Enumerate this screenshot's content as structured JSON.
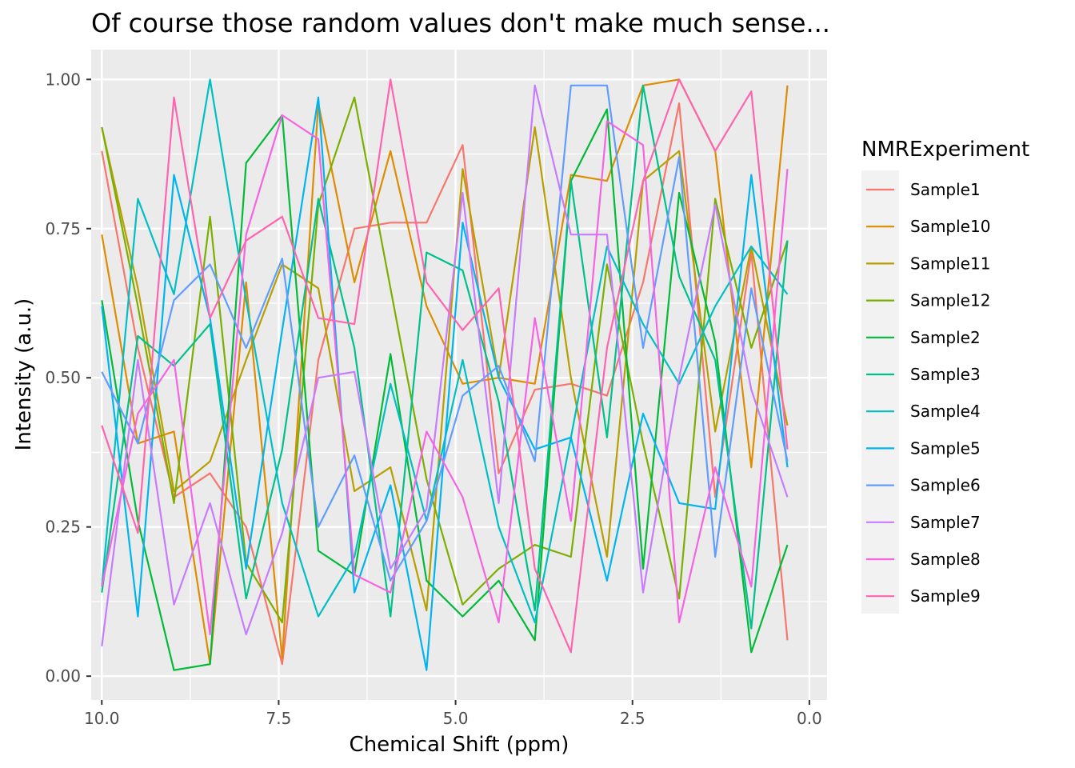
{
  "chart_data": {
    "type": "line",
    "title": "Of course those random values don't make much sense...",
    "xlabel": "Chemical Shift (ppm)",
    "ylabel": "Intensity (a.u.)",
    "x_reversed": true,
    "xlim": [
      10.15,
      -0.25
    ],
    "ylim": [
      -0.04,
      1.05
    ],
    "x_ticks": [
      10.0,
      7.5,
      5.0,
      2.5,
      0.0
    ],
    "x_tick_labels": [
      "10.0",
      "7.5",
      "5.0",
      "2.5",
      "0.0"
    ],
    "y_ticks": [
      0.0,
      0.25,
      0.5,
      0.75,
      1.0
    ],
    "y_tick_labels": [
      "0.00",
      "0.25",
      "0.50",
      "0.75",
      "1.00"
    ],
    "x": [
      10.0,
      9.49,
      8.98,
      8.47,
      7.96,
      7.45,
      6.94,
      6.43,
      5.92,
      5.41,
      4.9,
      4.39,
      3.88,
      3.37,
      2.86,
      2.35,
      1.84,
      1.33,
      0.82,
      0.31
    ],
    "grid": true,
    "legend": {
      "title": "NMRExperiment",
      "position": "right"
    },
    "series": [
      {
        "name": "Sample1",
        "color": "#F8766D",
        "values": [
          0.88,
          0.55,
          0.3,
          0.34,
          0.25,
          0.02,
          0.53,
          0.75,
          0.76,
          0.76,
          0.89,
          0.34,
          0.48,
          0.49,
          0.47,
          0.66,
          0.96,
          0.3,
          0.71,
          0.06
        ]
      },
      {
        "name": "Sample10",
        "color": "#DE8C00",
        "values": [
          0.74,
          0.39,
          0.41,
          0.02,
          0.66,
          0.03,
          0.96,
          0.66,
          0.88,
          0.62,
          0.49,
          0.5,
          0.49,
          0.84,
          0.83,
          0.99,
          1.0,
          0.88,
          0.35,
          0.99
        ]
      },
      {
        "name": "Sample11",
        "color": "#B79F00",
        "values": [
          0.92,
          0.65,
          0.31,
          0.36,
          0.53,
          0.69,
          0.65,
          0.31,
          0.35,
          0.11,
          0.85,
          0.5,
          0.92,
          0.5,
          0.2,
          0.83,
          0.88,
          0.41,
          0.72,
          0.42
        ]
      },
      {
        "name": "Sample12",
        "color": "#7CAE00",
        "values": [
          0.92,
          0.62,
          0.29,
          0.77,
          0.19,
          0.09,
          0.79,
          0.97,
          0.65,
          0.33,
          0.12,
          0.18,
          0.22,
          0.2,
          0.69,
          0.39,
          0.13,
          0.8,
          0.55,
          0.73
        ]
      },
      {
        "name": "Sample2",
        "color": "#00BA38",
        "values": [
          0.63,
          0.26,
          0.01,
          0.02,
          0.86,
          0.94,
          0.21,
          0.17,
          0.54,
          0.16,
          0.1,
          0.16,
          0.06,
          0.83,
          0.95,
          0.18,
          0.81,
          0.56,
          0.04,
          0.22
        ]
      },
      {
        "name": "Sample3",
        "color": "#00C08B",
        "values": [
          0.14,
          0.57,
          0.52,
          0.59,
          0.13,
          0.38,
          0.8,
          0.55,
          0.1,
          0.71,
          0.68,
          0.46,
          0.11,
          0.83,
          0.4,
          0.99,
          0.67,
          0.53,
          0.08,
          0.73
        ]
      },
      {
        "name": "Sample4",
        "color": "#00BFC4",
        "values": [
          0.15,
          0.8,
          0.64,
          1.0,
          0.63,
          0.29,
          0.1,
          0.2,
          0.49,
          0.26,
          0.53,
          0.25,
          0.09,
          0.4,
          0.72,
          0.59,
          0.49,
          0.62,
          0.72,
          0.64
        ]
      },
      {
        "name": "Sample5",
        "color": "#00B4F0",
        "values": [
          0.62,
          0.1,
          0.84,
          0.6,
          0.18,
          0.58,
          0.97,
          0.14,
          0.32,
          0.01,
          0.76,
          0.5,
          0.38,
          0.4,
          0.16,
          0.44,
          0.29,
          0.28,
          0.84,
          0.35
        ]
      },
      {
        "name": "Sample6",
        "color": "#619CFF",
        "values": [
          0.51,
          0.39,
          0.63,
          0.69,
          0.55,
          0.7,
          0.25,
          0.37,
          0.16,
          0.26,
          0.47,
          0.52,
          0.36,
          0.99,
          0.99,
          0.55,
          0.87,
          0.2,
          0.65,
          0.36
        ]
      },
      {
        "name": "Sample7",
        "color": "#C77CFF",
        "values": [
          0.05,
          0.53,
          0.12,
          0.29,
          0.07,
          0.24,
          0.5,
          0.51,
          0.18,
          0.28,
          0.81,
          0.29,
          0.99,
          0.74,
          0.74,
          0.14,
          0.5,
          0.79,
          0.48,
          0.3
        ]
      },
      {
        "name": "Sample8",
        "color": "#F564E3",
        "values": [
          0.15,
          0.44,
          0.53,
          0.07,
          0.74,
          0.94,
          0.9,
          0.17,
          0.14,
          0.41,
          0.3,
          0.09,
          0.6,
          0.26,
          0.93,
          0.89,
          0.09,
          0.35,
          0.15,
          0.85
        ]
      },
      {
        "name": "Sample9",
        "color": "#FF64B0",
        "values": [
          0.42,
          0.24,
          0.97,
          0.6,
          0.73,
          0.77,
          0.6,
          0.59,
          1.0,
          0.66,
          0.58,
          0.65,
          0.18,
          0.04,
          0.55,
          0.83,
          1.0,
          0.88,
          0.98,
          0.38
        ]
      }
    ]
  }
}
